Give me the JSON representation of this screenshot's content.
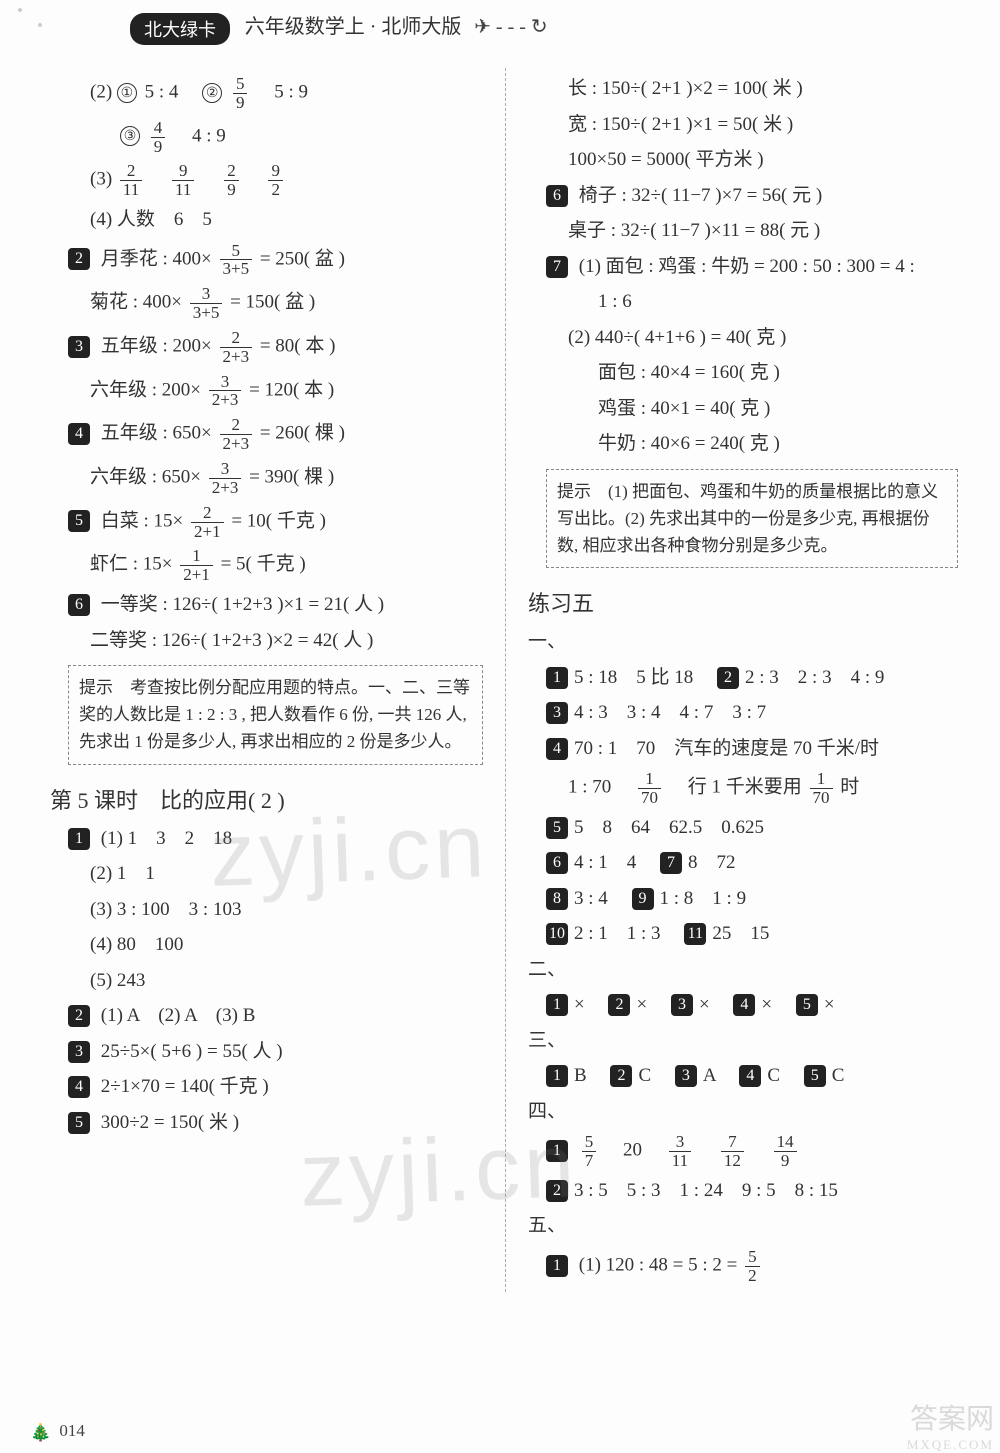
{
  "header": {
    "badge": "北大绿卡",
    "title": "六年级数学上 · 北师大版"
  },
  "left": {
    "l1a": "(2) ",
    "l1c1": "①",
    "l1b": " 5 : 4　",
    "l1c2": "②",
    "f1n": "5",
    "f1d": "9",
    "l1c": "　5 : 9",
    "l2c": "③",
    "f2n": "4",
    "f2d": "9",
    "l2b": "　4 : 9",
    "l3a": "(3) ",
    "f3an": "2",
    "f3ad": "11",
    "f3bn": "9",
    "f3bd": "11",
    "f3cn": "2",
    "f3cd": "9",
    "f3dn": "9",
    "f3dd": "2",
    "l4": "(4) 人数　6　5",
    "b2": "2",
    "l5a": "月季花 : 400×",
    "f5n": "5",
    "f5d": "3+5",
    "l5b": "= 250( 盆 )",
    "l6a": "菊花 : 400×",
    "f6n": "3",
    "f6d": "3+5",
    "l6b": "= 150( 盆 )",
    "b3": "3",
    "l7a": "五年级 : 200×",
    "f7n": "2",
    "f7d": "2+3",
    "l7b": "= 80( 本 )",
    "l8a": "六年级 : 200×",
    "f8n": "3",
    "f8d": "2+3",
    "l8b": "= 120( 本 )",
    "b4": "4",
    "l9a": "五年级 : 650×",
    "f9n": "2",
    "f9d": "2+3",
    "l9b": "= 260( 棵 )",
    "l10a": "六年级 : 650×",
    "f10n": "3",
    "f10d": "2+3",
    "l10b": "= 390( 棵 )",
    "b5": "5",
    "l11a": "白菜 : 15×",
    "f11n": "2",
    "f11d": "2+1",
    "l11b": "= 10( 千克 )",
    "l12a": "虾仁 : 15×",
    "f12n": "1",
    "f12d": "2+1",
    "l12b": "= 5( 千克 )",
    "b6": "6",
    "l13": "一等奖 : 126÷( 1+2+3 )×1 = 21( 人 )",
    "l14": "二等奖 : 126÷( 1+2+3 )×2 = 42( 人 )",
    "hint1": "提示　考查按比例分配应用题的特点。一、二、三等奖的人数比是 1 : 2 : 3 , 把人数看作 6 份, 一共 126 人, 先求出 1 份是多少人, 再求出相应的 2 份是多少人。",
    "sec": "第 5 课时　比的应用( 2 )",
    "bA1": "1",
    "lA1": "(1) 1　3　2　18",
    "lA2": "(2) 1　1",
    "lA3": "(3) 3 : 100　3 : 103",
    "lA4": "(4) 80　100",
    "lA5": "(5) 243",
    "bA2": "2",
    "lA6": "(1) A　(2) A　(3) B",
    "bA3": "3",
    "lA7": "25÷5×( 5+6 ) = 55( 人 )",
    "bA4": "4",
    "lA8": "2÷1×70 = 140( 千克 )",
    "bA5": "5",
    "lA9": "300÷2 = 150( 米 )"
  },
  "right": {
    "r1": "长 : 150÷( 2+1 )×2 = 100( 米 )",
    "r2": "宽 : 150÷( 2+1 )×1 = 50( 米 )",
    "r3": "100×50 = 5000( 平方米 )",
    "b6": "6",
    "r4": "椅子 : 32÷( 11−7 )×7 = 56( 元 )",
    "r5": "桌子 : 32÷( 11−7 )×11 = 88( 元 )",
    "b7": "7",
    "r6": "(1) 面包 : 鸡蛋 : 牛奶 = 200 : 50 : 300 = 4 :",
    "r6b": "1 : 6",
    "r7": "(2) 440÷( 4+1+6 ) = 40( 克 )",
    "r8": "面包 : 40×4 = 160( 克 )",
    "r9": "鸡蛋 : 40×1 = 40( 克 )",
    "r10": "牛奶 : 40×6 = 240( 克 )",
    "hint2": "提示　(1) 把面包、鸡蛋和牛奶的质量根据比的意义写出比。(2) 先求出其中的一份是多少克, 再根据份数, 相应求出各种食物分别是多少克。",
    "sec2": "练习五",
    "s1": "一、",
    "bB1": "1",
    "rB1": "5 : 18　5 比 18　",
    "bB2": "2",
    "rB2": "2 : 3　2 : 3　4 : 9",
    "bB3": "3",
    "rB3": "4 : 3　3 : 4　4 : 7　3 : 7",
    "bB4": "4",
    "rB4": "70 : 1　70　汽车的速度是 70 千米/时",
    "rB5a": "1 : 70　",
    "fB5n": "1",
    "fB5d": "70",
    "rB5b": "　行 1 千米要用",
    "fB5cn": "1",
    "fB5cd": "70",
    "rB5c": "时",
    "bB5": "5",
    "rB6": "5　8　64　62.5　0.625",
    "bB6": "6",
    "rB7": "4 : 1　4　",
    "bB7": "7",
    "rB7b": "8　72",
    "bB8": "8",
    "rB8": "3 : 4　",
    "bB9": "9",
    "rB8b": "1 : 8　1 : 9",
    "bB10": "10",
    "rB9": "2 : 1　1 : 3　",
    "bB11": "11",
    "rB9b": "25　15",
    "s2": "二、",
    "bC1": "1",
    "x1": "×　",
    "bC2": "2",
    "x2": "×　",
    "bC3": "3",
    "x3": "×　",
    "bC4": "4",
    "x4": "×　",
    "bC5": "5",
    "x5": "×",
    "s3": "三、",
    "bD1": "1",
    "d1": "B　",
    "bD2": "2",
    "d2": "C　",
    "bD3": "3",
    "d3": "A　",
    "bD4": "4",
    "d4": "C　",
    "bD5": "5",
    "d5": "C",
    "s4": "四、",
    "bE1": "1",
    "fE1n": "5",
    "fE1d": "7",
    "e1mid": "　20　",
    "fE2n": "3",
    "fE2d": "11",
    "fE3n": "7",
    "fE3d": "12",
    "fE4n": "14",
    "fE4d": "9",
    "bE2": "2",
    "e2": "3 : 5　5 : 3　1 : 24　9 : 5　8 : 15",
    "s5": "五、",
    "bF1": "1",
    "f1a": "(1) 120 : 48 = 5 : 2 = ",
    "fFn": "5",
    "fFd": "2"
  },
  "footer": {
    "pagenum": "014"
  },
  "watermark": "zyji.cn",
  "corner": {
    "t1": "答案网",
    "t2": "MXQE.COM"
  }
}
